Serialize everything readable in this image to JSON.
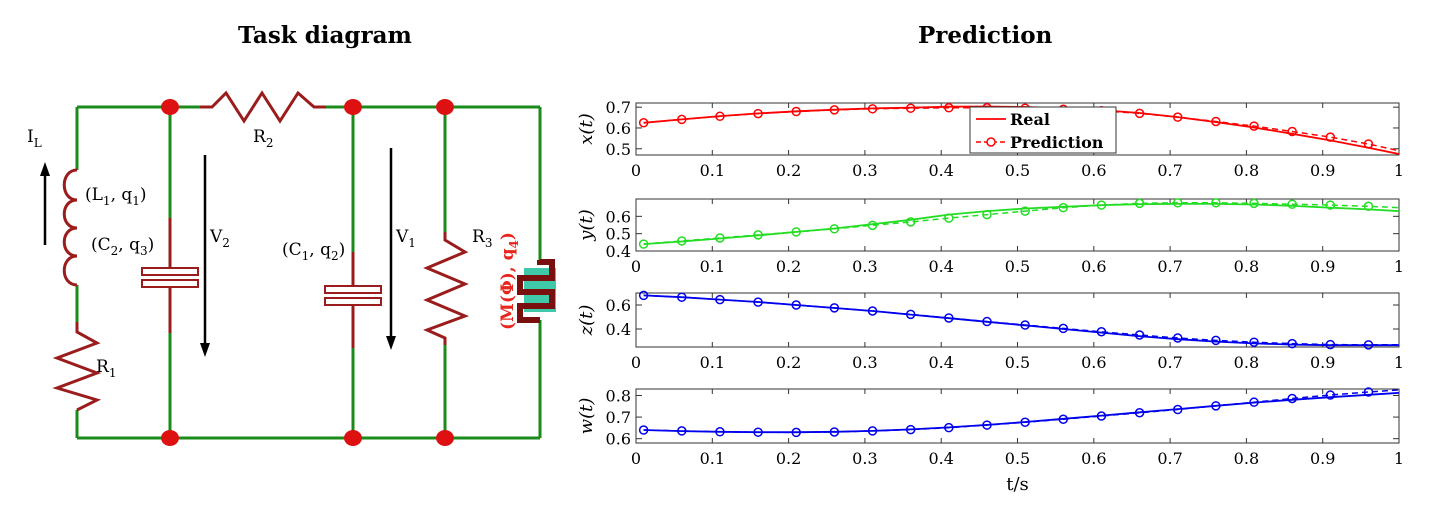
{
  "titles": {
    "left": "Task diagram",
    "right": "Prediction"
  },
  "circuit": {
    "wire_color": "#1a8a1a",
    "component_color": "#9b1c1c",
    "node_color": "#dd1111",
    "labels": {
      "current": "I",
      "current_sub": "L",
      "inductor": "(L",
      "inductor_sub": "1",
      "inductor_q": ", q",
      "inductor_q_sub": "1",
      "c2": "(C",
      "c2_sub": "2",
      "c2_q": ", q",
      "c2_q_sub": "3",
      "c1": "(C",
      "c1_sub": "1",
      "c1_q": ", q",
      "c1_q_sub": "2",
      "v2": "V",
      "v2_sub": "2",
      "v1": "V",
      "v1_sub": "1",
      "r1": "R",
      "r1_sub": "1",
      "r2": "R",
      "r2_sub": "2",
      "r3": "R",
      "r3_sub": "3",
      "memristor": "(M(Φ), q",
      "memristor_sub": "4"
    }
  },
  "chart_data": [
    {
      "type": "line",
      "ylabel": "x(t)",
      "xlabel": "",
      "xlim": [
        0,
        1
      ],
      "ylim": [
        0.47,
        0.72
      ],
      "yticks": [
        0.5,
        0.6,
        0.7
      ],
      "color": "#ff0000",
      "x": [
        0.01,
        0.06,
        0.11,
        0.16,
        0.21,
        0.26,
        0.31,
        0.36,
        0.41,
        0.46,
        0.51,
        0.56,
        0.61,
        0.66,
        0.71,
        0.76,
        0.81,
        0.86,
        0.91,
        0.96,
        1.0
      ],
      "real": [
        0.625,
        0.641,
        0.657,
        0.67,
        0.68,
        0.688,
        0.694,
        0.698,
        0.702,
        0.703,
        0.701,
        0.695,
        0.686,
        0.672,
        0.652,
        0.628,
        0.602,
        0.572,
        0.54,
        0.505,
        0.475
      ],
      "prediction": [
        0.625,
        0.641,
        0.656,
        0.669,
        0.679,
        0.687,
        0.692,
        0.695,
        0.697,
        0.697,
        0.695,
        0.69,
        0.683,
        0.67,
        0.652,
        0.631,
        0.609,
        0.583,
        0.556,
        0.523,
        0.49
      ],
      "legend": {
        "real": "Real",
        "prediction": "Prediction"
      }
    },
    {
      "type": "line",
      "ylabel": "y(t)",
      "xlabel": "",
      "xlim": [
        0,
        1
      ],
      "ylim": [
        0.4,
        0.7
      ],
      "yticks": [
        0.4,
        0.5,
        0.6
      ],
      "color": "#22dd22",
      "x": [
        0.01,
        0.06,
        0.11,
        0.16,
        0.21,
        0.26,
        0.31,
        0.36,
        0.41,
        0.46,
        0.51,
        0.56,
        0.61,
        0.66,
        0.71,
        0.76,
        0.81,
        0.86,
        0.91,
        0.96,
        1.0
      ],
      "real": [
        0.44,
        0.455,
        0.472,
        0.49,
        0.51,
        0.53,
        0.555,
        0.58,
        0.61,
        0.63,
        0.645,
        0.655,
        0.665,
        0.67,
        0.672,
        0.672,
        0.668,
        0.66,
        0.65,
        0.64,
        0.63
      ],
      "prediction": [
        0.44,
        0.458,
        0.475,
        0.493,
        0.51,
        0.528,
        0.548,
        0.568,
        0.59,
        0.61,
        0.63,
        0.65,
        0.665,
        0.675,
        0.678,
        0.678,
        0.675,
        0.67,
        0.665,
        0.658,
        0.65
      ]
    },
    {
      "type": "line",
      "ylabel": "z(t)",
      "xlabel": "",
      "xlim": [
        0,
        1
      ],
      "ylim": [
        0.25,
        0.7
      ],
      "yticks": [
        0.4,
        0.6
      ],
      "color": "#0000ee",
      "x": [
        0.01,
        0.06,
        0.11,
        0.16,
        0.21,
        0.26,
        0.31,
        0.36,
        0.41,
        0.46,
        0.51,
        0.56,
        0.61,
        0.66,
        0.71,
        0.76,
        0.81,
        0.86,
        0.91,
        0.96,
        1.0
      ],
      "real": [
        0.68,
        0.665,
        0.645,
        0.625,
        0.6,
        0.575,
        0.55,
        0.52,
        0.49,
        0.46,
        0.43,
        0.4,
        0.37,
        0.34,
        0.315,
        0.295,
        0.28,
        0.27,
        0.265,
        0.265,
        0.265
      ],
      "prediction": [
        0.68,
        0.665,
        0.645,
        0.624,
        0.6,
        0.576,
        0.55,
        0.522,
        0.492,
        0.462,
        0.433,
        0.405,
        0.377,
        0.35,
        0.325,
        0.305,
        0.29,
        0.278,
        0.27,
        0.268,
        0.268
      ]
    },
    {
      "type": "line",
      "ylabel": "w(t)",
      "xlabel": "t/s",
      "xlim": [
        0,
        1
      ],
      "ylim": [
        0.58,
        0.83
      ],
      "yticks": [
        0.6,
        0.7,
        0.8
      ],
      "color": "#0000ee",
      "x": [
        0.01,
        0.06,
        0.11,
        0.16,
        0.21,
        0.26,
        0.31,
        0.36,
        0.41,
        0.46,
        0.51,
        0.56,
        0.61,
        0.66,
        0.71,
        0.76,
        0.81,
        0.86,
        0.91,
        0.96,
        1.0
      ],
      "real": [
        0.64,
        0.635,
        0.632,
        0.63,
        0.63,
        0.632,
        0.636,
        0.643,
        0.652,
        0.664,
        0.677,
        0.692,
        0.707,
        0.722,
        0.737,
        0.752,
        0.767,
        0.78,
        0.792,
        0.803,
        0.812
      ],
      "prediction": [
        0.64,
        0.636,
        0.632,
        0.63,
        0.629,
        0.631,
        0.636,
        0.642,
        0.651,
        0.663,
        0.676,
        0.69,
        0.705,
        0.72,
        0.735,
        0.752,
        0.769,
        0.786,
        0.802,
        0.816,
        0.826
      ]
    }
  ],
  "xticks": [
    0,
    0.1,
    0.2,
    0.3,
    0.4,
    0.5,
    0.6,
    0.7,
    0.8,
    0.9,
    1
  ]
}
